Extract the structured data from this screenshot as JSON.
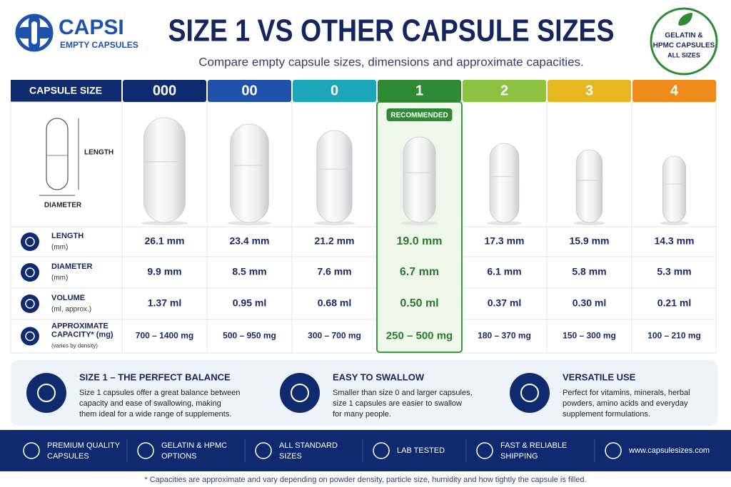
{
  "header": {
    "logo_name": "CAPSI",
    "logo_tagline": "EMPTY CAPSULES",
    "title": "SIZE 1 VS OTHER CAPSULE SIZES",
    "subtitle": "Compare empty capsule sizes, dimensions and approximate capacities.",
    "badge_lines": [
      "GELATIN &",
      "HPMC CAPSULES",
      "ALL SIZES"
    ]
  },
  "table": {
    "header_label": "CAPSULE SIZE",
    "sizes": [
      "000",
      "00",
      "0",
      "1",
      "2",
      "3",
      "4"
    ],
    "size_colors": [
      "#0f2a6e",
      "#1f52ab",
      "#1da6b9",
      "#2f8a36",
      "#8cc23f",
      "#e5b721",
      "#ef8b1b"
    ],
    "recommended": "RECOMMENDED",
    "diagram_length": "LENGTH",
    "diagram_diameter": "DIAMETER",
    "rows": [
      {
        "label_lines": [
          "LENGTH"
        ],
        "unit": "(mm)",
        "values": [
          "26.1 mm",
          "23.4 mm",
          "21.2 mm",
          "19.0 mm",
          "17.3 mm",
          "15.9 mm",
          "14.3 mm"
        ]
      },
      {
        "label_lines": [
          "DIAMETER"
        ],
        "unit": "(mm)",
        "values": [
          "9.9 mm",
          "8.5 mm",
          "7.6 mm",
          "6.7 mm",
          "6.1 mm",
          "5.8 mm",
          "5.3 mm"
        ]
      },
      {
        "label_lines": [
          "VOLUME"
        ],
        "unit": "(ml, approx.)",
        "values": [
          "1.37 ml",
          "0.95 ml",
          "0.68 ml",
          "0.50 ml",
          "0.37 ml",
          "0.30 ml",
          "0.21 ml"
        ]
      },
      {
        "label_lines": [
          "APPROXIMATE",
          "CAPACITY* (mg)"
        ],
        "unit": "(varies by density)",
        "values": [
          "700 – 1400 mg",
          "500 – 950 mg",
          "300 – 700 mg",
          "250 – 500 mg",
          "180 – 370 mg",
          "150 – 300 mg",
          "100 – 210 mg"
        ]
      }
    ]
  },
  "features": [
    {
      "title": "SIZE 1 – THE PERFECT BALANCE",
      "lines": [
        "Size 1 capsules offer a great balance between",
        "capacity and ease of swallowing, making",
        "them ideal for a wide range of supplements."
      ]
    },
    {
      "title": "EASY TO SWALLOW",
      "lines": [
        "Smaller than size 0 and larger capsules,",
        "size 1 capsules are easier to swallow",
        "for many people."
      ]
    },
    {
      "title": "VERSATILE USE",
      "lines": [
        "Perfect for vitamins, minerals, herbal",
        "powders, amino acids and everyday",
        "supplement formulations."
      ]
    }
  ],
  "footer": [
    {
      "lines": [
        "PREMIUM QUALITY",
        "CAPSULES"
      ]
    },
    {
      "lines": [
        "GELATIN & HPMC",
        "OPTIONS"
      ]
    },
    {
      "lines": [
        "ALL STANDARD",
        "SIZES"
      ]
    },
    {
      "lines": [
        "LAB TESTED"
      ]
    },
    {
      "lines": [
        "FAST & RELIABLE",
        "SHIPPING"
      ]
    },
    {
      "lines": [
        "www.capsulesizes.com"
      ]
    }
  ],
  "footnote": "* Capacities are approximate and vary depending on powder density, particle size, humidity and how tightly the capsule is filled."
}
